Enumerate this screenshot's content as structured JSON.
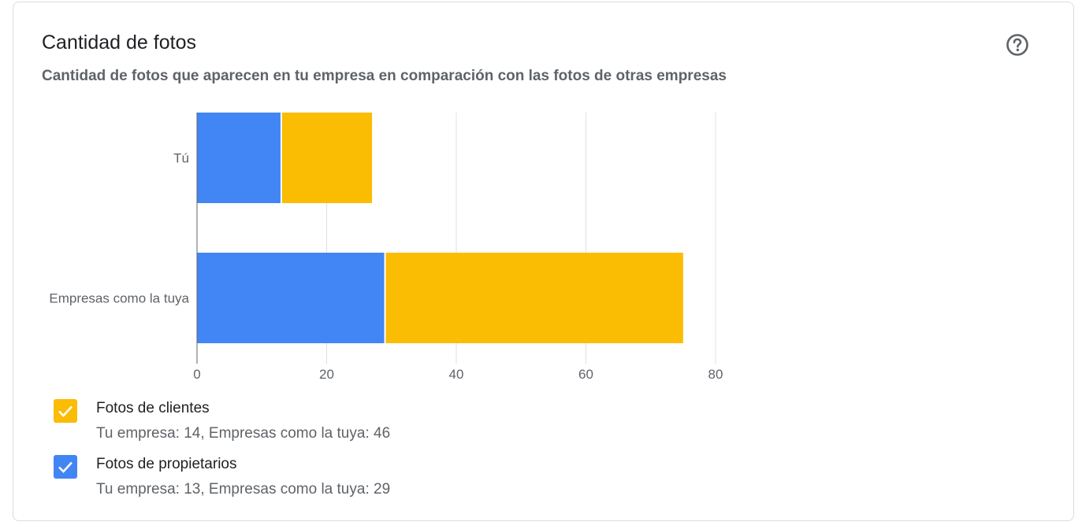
{
  "card": {
    "title": "Cantidad de fotos",
    "subtitle": "Cantidad de fotos que aparecen en tu empresa en comparación con las fotos de otras empresas",
    "help_icon": "help-circle-icon"
  },
  "legend": [
    {
      "label": "Fotos de clientes",
      "detail": "Tu empresa: 14, Empresas como la tuya: 46",
      "color": "#fbbc04",
      "checked": true
    },
    {
      "label": "Fotos de propietarios",
      "detail": "Tu empresa: 13, Empresas como la tuya: 29",
      "color": "#4285f4",
      "checked": true
    }
  ],
  "chart_data": {
    "type": "bar",
    "orientation": "horizontal",
    "stacked": true,
    "categories": [
      "Tú",
      "Empresas como la tuya"
    ],
    "series": [
      {
        "name": "Fotos de propietarios",
        "values": [
          13,
          29
        ],
        "color": "#4285f4"
      },
      {
        "name": "Fotos de clientes",
        "values": [
          14,
          46
        ],
        "color": "#fbbc04"
      }
    ],
    "xticks": [
      "0",
      "20",
      "40",
      "60",
      "80"
    ],
    "xlim": [
      0,
      80
    ],
    "grid": true,
    "legend_position": "bottom"
  }
}
